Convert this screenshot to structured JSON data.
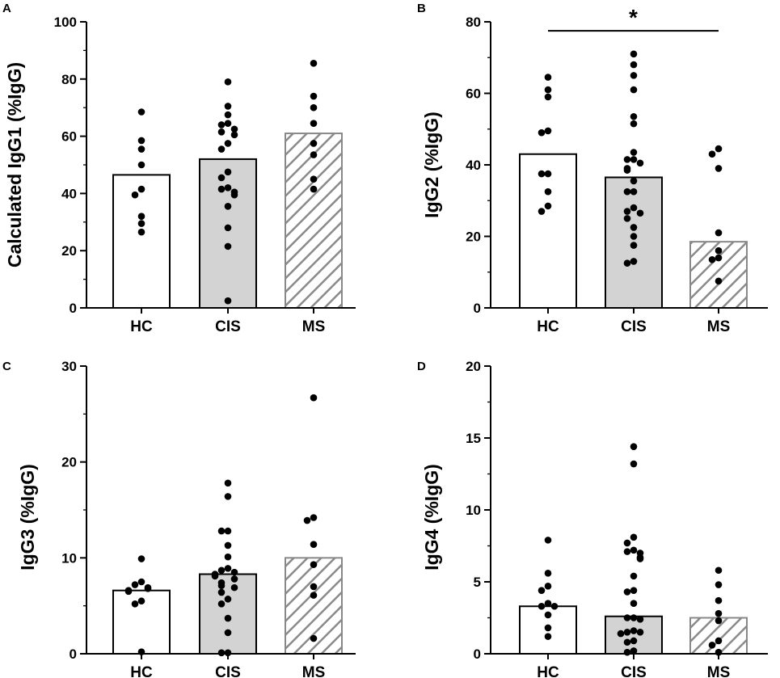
{
  "styles": {
    "HC": {
      "fill": "#ffffff",
      "stroke": "#000000"
    },
    "CIS": {
      "fill": "#d3d3d3",
      "stroke": "#000000"
    },
    "MS": {
      "fill": "hatch",
      "stroke": "#888888"
    }
  },
  "chart_data": [
    {
      "panel": "A",
      "type": "bar",
      "ylabel": "Calculated IgG1 (%IgG)",
      "ylim": [
        0,
        100
      ],
      "yticks": [
        0,
        20,
        40,
        60,
        80,
        100
      ],
      "categories": [
        "HC",
        "CIS",
        "MS"
      ],
      "values": [
        46.5,
        52,
        61
      ],
      "points": [
        [
          68.5,
          58.5,
          55.5,
          50,
          41.5,
          39.5,
          32,
          29.5,
          26.5
        ],
        [
          79,
          70.5,
          67.5,
          64.5,
          64,
          62.5,
          61.5,
          60.5,
          57.5,
          55.5,
          47.5,
          45.5,
          42,
          41.5,
          40.5,
          39.5,
          35.5,
          28,
          21.5,
          2.5
        ],
        [
          85.5,
          74,
          70,
          64.5,
          57.5,
          53.5,
          45,
          41.5
        ]
      ]
    },
    {
      "panel": "B",
      "type": "bar",
      "ylabel": "IgG2 (%IgG)",
      "ylim": [
        0,
        80
      ],
      "yticks": [
        0,
        20,
        40,
        60,
        80
      ],
      "categories": [
        "HC",
        "CIS",
        "MS"
      ],
      "values": [
        43,
        36.5,
        18.5
      ],
      "significance": {
        "from": "HC",
        "to": "MS",
        "label": "*",
        "y": 77.5
      },
      "points": [
        [
          64.5,
          61,
          59,
          49.5,
          49,
          37.5,
          37.5,
          32.5,
          28.5,
          27
        ],
        [
          71,
          68,
          65,
          61,
          53.5,
          51.5,
          43.5,
          41.5,
          41.5,
          40.5,
          39,
          38.5,
          35.5,
          32.5,
          32.5,
          28,
          27,
          26.5,
          25,
          22.5,
          20,
          17.5,
          13,
          12.5
        ],
        [
          44.5,
          43,
          39,
          21,
          16,
          14,
          13.5,
          7.5
        ]
      ]
    },
    {
      "panel": "C",
      "type": "bar",
      "ylabel": "IgG3 (%IgG)",
      "ylim": [
        0,
        30
      ],
      "yticks": [
        0,
        10,
        20,
        30
      ],
      "categories": [
        "HC",
        "CIS",
        "MS"
      ],
      "values": [
        6.6,
        8.3,
        10
      ],
      "points": [
        [
          9.9,
          7.5,
          7.2,
          6.9,
          6.8,
          6.6,
          6.5,
          5.5,
          5.2,
          0.2
        ],
        [
          17.8,
          16.4,
          12.8,
          12.8,
          11.3,
          10.1,
          8.9,
          8.7,
          8.5,
          8.3,
          8.1,
          7.8,
          7.4,
          7.1,
          6.9,
          6.4,
          5.7,
          5.2,
          3.7,
          2.2,
          0.1,
          0.1
        ],
        [
          26.7,
          14.2,
          13.9,
          11.4,
          9.3,
          7,
          6.1,
          1.6
        ]
      ]
    },
    {
      "panel": "D",
      "type": "bar",
      "ylabel": "IgG4 (%IgG)",
      "ylim": [
        0,
        20
      ],
      "yticks": [
        0,
        5,
        10,
        15,
        20
      ],
      "categories": [
        "HC",
        "CIS",
        "MS"
      ],
      "values": [
        3.3,
        2.6,
        2.5
      ],
      "points": [
        [
          7.9,
          5.6,
          4.7,
          4.4,
          3.5,
          3.3,
          3.3,
          2.7,
          1.8,
          1.2
        ],
        [
          14.4,
          13.2,
          8.1,
          7.7,
          7.2,
          7.1,
          7,
          6.7,
          6.6,
          5.4,
          4.4,
          4.3,
          3.5,
          2.5,
          2.5,
          2.4,
          1.6,
          1.5,
          1.5,
          1.4,
          0.9,
          0.8,
          0.2,
          0.1
        ],
        [
          5.8,
          4.8,
          3.7,
          2.8,
          2.3,
          0.9,
          0.6,
          0.1
        ]
      ]
    }
  ]
}
